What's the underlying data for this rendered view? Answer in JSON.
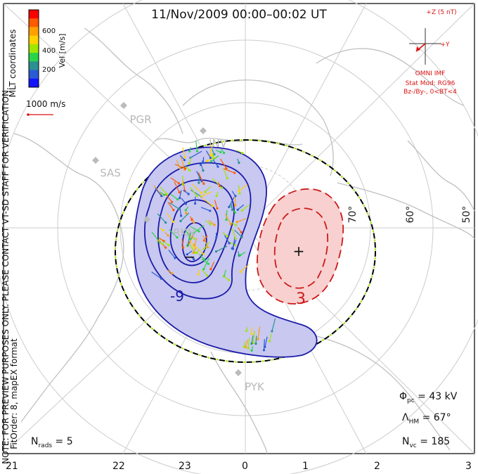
{
  "title": "11/Nov/2009 00:00–00:02 UT",
  "colorbar": {
    "label": "Vel [m/s]",
    "ticks": [
      "600",
      "400",
      "200"
    ],
    "colors": [
      "#ff0000",
      "#ff5a00",
      "#ffa000",
      "#ffd200",
      "#a0e600",
      "#2ad44a",
      "#2a9090",
      "#2a5ad4",
      "#1414ff"
    ]
  },
  "coords_label": "MLT coordinates",
  "scale_label": "1000 m/s",
  "vertical_note": "NOTE: FOR PREVIEW PURPOSES ONLY. PLEASE CONTACT VT-SD STAFF FOR VERIFICATION.",
  "vertical_fit": "FitOrder: 8,  mapEX format",
  "imf": {
    "z_label": "+Z (5 nT)",
    "y_label": "+Y",
    "model_title": "OMNI IMF",
    "model": "Stat Mod: RG96",
    "condition": "Bz-/By-, 0<BT<4"
  },
  "stations": [
    "PGR",
    "SAS",
    "INV",
    "RKN",
    "PYK"
  ],
  "lat_labels": [
    "70°",
    "60°",
    "50°"
  ],
  "contour_labels": {
    "neg": "-9",
    "pos": "3",
    "neg_cell": "−",
    "pos_cell": "+"
  },
  "mlt_labels": [
    "21",
    "22",
    "23",
    "0",
    "1",
    "2",
    "3"
  ],
  "stats": {
    "phi_pc": "43 kV",
    "lambda_hm": "67°",
    "n_vc": "185",
    "n_rads": "5"
  },
  "colors": {
    "neg_line": "#1a1aa8",
    "neg_fill": "#c8c8f0",
    "pos_line": "#cc1a1a",
    "pos_fill": "#f8d0d0",
    "grid": "#cccccc",
    "coast": "#c0c0c0",
    "accent": "#dd1111"
  }
}
